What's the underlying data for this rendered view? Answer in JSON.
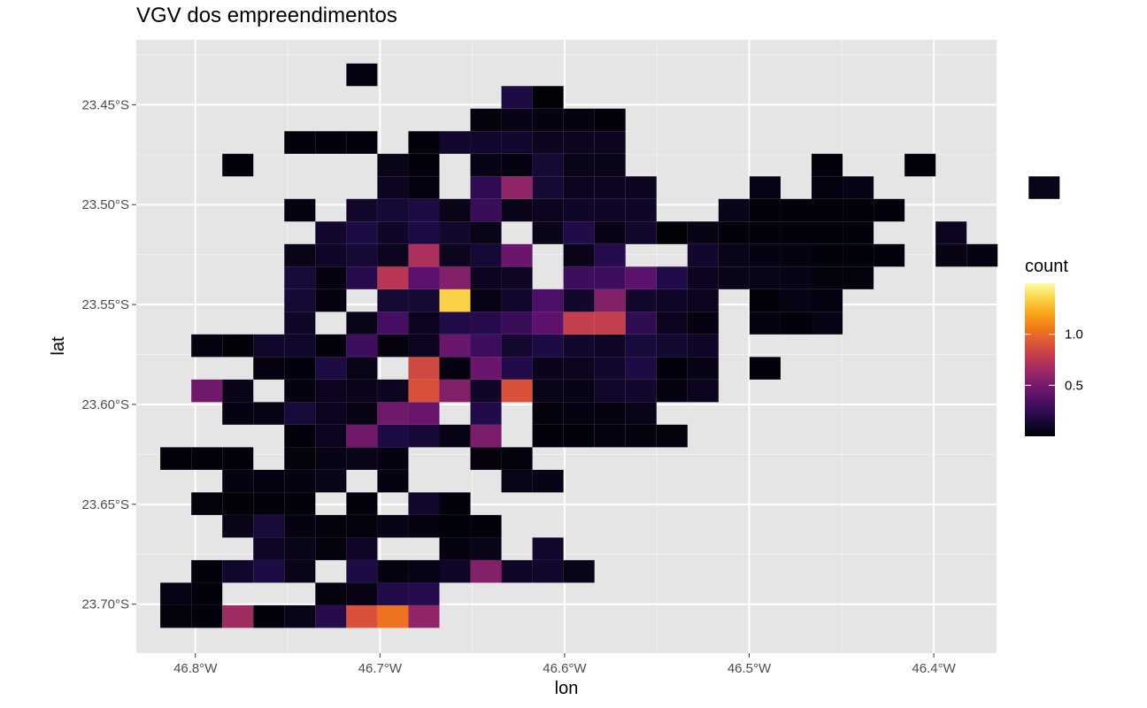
{
  "title": "VGV dos empreendimentos",
  "colors": {
    "panel_background": "#e5e5e5",
    "grid_line": "#ffffff",
    "palette": "inferno"
  },
  "chart_data": {
    "type": "heatmap",
    "title": "VGV dos empreendimentos",
    "xlabel": "lon",
    "ylabel": "lat",
    "x_ticks": [
      {
        "value": -46.8,
        "label": "46.8°W"
      },
      {
        "value": -46.7,
        "label": "46.7°W"
      },
      {
        "value": -46.6,
        "label": "46.6°W"
      },
      {
        "value": -46.5,
        "label": "46.5°W"
      },
      {
        "value": -46.4,
        "label": "46.4°W"
      }
    ],
    "y_ticks": [
      {
        "value": -23.45,
        "label": "23.45°S"
      },
      {
        "value": -23.5,
        "label": "23.50°S"
      },
      {
        "value": -23.55,
        "label": "23.55°S"
      },
      {
        "value": -23.6,
        "label": "23.60°S"
      },
      {
        "value": -23.65,
        "label": "23.65°S"
      },
      {
        "value": -23.7,
        "label": "23.70°S"
      }
    ],
    "xlim": [
      -46.832,
      -46.366
    ],
    "ylim": [
      -23.7245,
      -23.4175
    ],
    "grid": true,
    "legend": {
      "title": "count",
      "placement": "right",
      "range": [
        0.0,
        1.5
      ],
      "ticks": [
        {
          "value": 0.5,
          "label": "0.5"
        },
        {
          "value": 1.0,
          "label": "1.0"
        }
      ]
    },
    "bin_width": {
      "lon": 0.0168,
      "lat": 0.0113
    },
    "origin": {
      "lon": -46.8106,
      "lat": -23.7062
    },
    "cells": [
      [
        0,
        0,
        0.03
      ],
      [
        1,
        0,
        0.02
      ],
      [
        2,
        0,
        0.65
      ],
      [
        3,
        0,
        0.02
      ],
      [
        4,
        0,
        0.06
      ],
      [
        5,
        0,
        0.22
      ],
      [
        6,
        0,
        0.9
      ],
      [
        7,
        0,
        1.03
      ],
      [
        8,
        0,
        0.6
      ],
      [
        0,
        1,
        0.05
      ],
      [
        1,
        1,
        0.02
      ],
      [
        5,
        1,
        0.03
      ],
      [
        6,
        1,
        0.05
      ],
      [
        7,
        1,
        0.2
      ],
      [
        8,
        1,
        0.22
      ],
      [
        1,
        2,
        0.02
      ],
      [
        2,
        2,
        0.11
      ],
      [
        3,
        2,
        0.18
      ],
      [
        4,
        2,
        0.06
      ],
      [
        6,
        2,
        0.18
      ],
      [
        7,
        2,
        0.04
      ],
      [
        8,
        2,
        0.05
      ],
      [
        9,
        2,
        0.1
      ],
      [
        10,
        2,
        0.55
      ],
      [
        11,
        2,
        0.1
      ],
      [
        12,
        2,
        0.12
      ],
      [
        13,
        2,
        0.06
      ],
      [
        3,
        3,
        0.1
      ],
      [
        4,
        3,
        0.06
      ],
      [
        5,
        3,
        0.03
      ],
      [
        6,
        3,
        0.1
      ],
      [
        9,
        3,
        0.04
      ],
      [
        10,
        3,
        0.06
      ],
      [
        12,
        3,
        0.12
      ],
      [
        2,
        4,
        0.06
      ],
      [
        3,
        4,
        0.16
      ],
      [
        4,
        4,
        0.04
      ],
      [
        5,
        4,
        0.03
      ],
      [
        6,
        4,
        0.03
      ],
      [
        7,
        4,
        0.05
      ],
      [
        8,
        4,
        0.04
      ],
      [
        9,
        4,
        0.02
      ],
      [
        10,
        4,
        0.02
      ],
      [
        1,
        5,
        0.03
      ],
      [
        2,
        5,
        0.01
      ],
      [
        3,
        5,
        0.02
      ],
      [
        4,
        5,
        0.02
      ],
      [
        6,
        5,
        0.02
      ],
      [
        8,
        5,
        0.12
      ],
      [
        9,
        5,
        0.02
      ],
      [
        2,
        6,
        0.04
      ],
      [
        3,
        6,
        0.04
      ],
      [
        4,
        6,
        0.04
      ],
      [
        5,
        6,
        0.06
      ],
      [
        7,
        6,
        0.04
      ],
      [
        11,
        6,
        0.06
      ],
      [
        12,
        6,
        0.05
      ],
      [
        0,
        7,
        0.02
      ],
      [
        1,
        7,
        0.02
      ],
      [
        2,
        7,
        0.02
      ],
      [
        4,
        7,
        0.03
      ],
      [
        5,
        7,
        0.05
      ],
      [
        6,
        7,
        0.06
      ],
      [
        7,
        7,
        0.04
      ],
      [
        10,
        7,
        0.03
      ],
      [
        11,
        7,
        0.03
      ],
      [
        4,
        8,
        0.02
      ],
      [
        5,
        8,
        0.08
      ],
      [
        6,
        8,
        0.48
      ],
      [
        7,
        8,
        0.18
      ],
      [
        8,
        8,
        0.15
      ],
      [
        9,
        8,
        0.05
      ],
      [
        10,
        8,
        0.52
      ],
      [
        12,
        8,
        0.02
      ],
      [
        13,
        8,
        0.02
      ],
      [
        14,
        8,
        0.04
      ],
      [
        15,
        8,
        0.03
      ],
      [
        16,
        8,
        0.03
      ],
      [
        2,
        9,
        0.04
      ],
      [
        3,
        9,
        0.05
      ],
      [
        4,
        9,
        0.16
      ],
      [
        5,
        9,
        0.08
      ],
      [
        6,
        9,
        0.05
      ],
      [
        7,
        9,
        0.48
      ],
      [
        8,
        9,
        0.45
      ],
      [
        10,
        9,
        0.2
      ],
      [
        12,
        9,
        0.03
      ],
      [
        13,
        9,
        0.04
      ],
      [
        14,
        9,
        0.04
      ],
      [
        15,
        9,
        0.06
      ],
      [
        1,
        10,
        0.48
      ],
      [
        2,
        10,
        0.06
      ],
      [
        4,
        10,
        0.04
      ],
      [
        5,
        10,
        0.08
      ],
      [
        6,
        10,
        0.07
      ],
      [
        7,
        10,
        0.08
      ],
      [
        8,
        10,
        0.9
      ],
      [
        9,
        10,
        0.55
      ],
      [
        10,
        10,
        0.1
      ],
      [
        11,
        10,
        0.9
      ],
      [
        12,
        10,
        0.06
      ],
      [
        13,
        10,
        0.05
      ],
      [
        14,
        10,
        0.11
      ],
      [
        15,
        10,
        0.12
      ],
      [
        16,
        10,
        0.04
      ],
      [
        17,
        10,
        0.08
      ],
      [
        3,
        11,
        0.04
      ],
      [
        4,
        11,
        0.02
      ],
      [
        5,
        11,
        0.18
      ],
      [
        6,
        11,
        0.06
      ],
      [
        8,
        11,
        0.86
      ],
      [
        9,
        11,
        0.04
      ],
      [
        10,
        11,
        0.45
      ],
      [
        11,
        11,
        0.2
      ],
      [
        12,
        11,
        0.07
      ],
      [
        13,
        11,
        0.08
      ],
      [
        14,
        11,
        0.12
      ],
      [
        15,
        11,
        0.18
      ],
      [
        16,
        11,
        0.02
      ],
      [
        17,
        11,
        0.05
      ],
      [
        19,
        11,
        0.02
      ],
      [
        1,
        12,
        0.04
      ],
      [
        2,
        12,
        0.01
      ],
      [
        3,
        12,
        0.11
      ],
      [
        4,
        12,
        0.11
      ],
      [
        5,
        12,
        0.02
      ],
      [
        6,
        12,
        0.3
      ],
      [
        7,
        12,
        0.03
      ],
      [
        8,
        12,
        0.08
      ],
      [
        9,
        12,
        0.45
      ],
      [
        10,
        12,
        0.3
      ],
      [
        11,
        12,
        0.13
      ],
      [
        12,
        12,
        0.18
      ],
      [
        13,
        12,
        0.12
      ],
      [
        14,
        12,
        0.1
      ],
      [
        15,
        12,
        0.16
      ],
      [
        16,
        12,
        0.13
      ],
      [
        17,
        12,
        0.1
      ],
      [
        4,
        13,
        0.1
      ],
      [
        6,
        13,
        0.06
      ],
      [
        7,
        13,
        0.32
      ],
      [
        8,
        13,
        0.08
      ],
      [
        9,
        13,
        0.2
      ],
      [
        10,
        13,
        0.22
      ],
      [
        11,
        13,
        0.28
      ],
      [
        12,
        13,
        0.4
      ],
      [
        13,
        13,
        0.8
      ],
      [
        14,
        13,
        0.8
      ],
      [
        15,
        13,
        0.25
      ],
      [
        16,
        13,
        0.08
      ],
      [
        17,
        13,
        0.04
      ],
      [
        19,
        13,
        0.04
      ],
      [
        20,
        13,
        0.02
      ],
      [
        21,
        13,
        0.05
      ],
      [
        4,
        14,
        0.14
      ],
      [
        5,
        14,
        0.04
      ],
      [
        7,
        14,
        0.14
      ],
      [
        8,
        14,
        0.14
      ],
      [
        9,
        14,
        1.35
      ],
      [
        10,
        14,
        0.05
      ],
      [
        11,
        14,
        0.12
      ],
      [
        12,
        14,
        0.35
      ],
      [
        13,
        14,
        0.12
      ],
      [
        14,
        14,
        0.55
      ],
      [
        15,
        14,
        0.12
      ],
      [
        16,
        14,
        0.1
      ],
      [
        17,
        14,
        0.08
      ],
      [
        19,
        14,
        0.02
      ],
      [
        20,
        14,
        0.05
      ],
      [
        21,
        14,
        0.04
      ],
      [
        4,
        15,
        0.16
      ],
      [
        5,
        15,
        0.04
      ],
      [
        6,
        15,
        0.22
      ],
      [
        7,
        15,
        0.75
      ],
      [
        8,
        15,
        0.4
      ],
      [
        9,
        15,
        0.55
      ],
      [
        10,
        15,
        0.08
      ],
      [
        11,
        15,
        0.09
      ],
      [
        13,
        15,
        0.3
      ],
      [
        14,
        15,
        0.3
      ],
      [
        15,
        15,
        0.4
      ],
      [
        16,
        15,
        0.2
      ],
      [
        17,
        15,
        0.08
      ],
      [
        18,
        15,
        0.06
      ],
      [
        19,
        15,
        0.06
      ],
      [
        20,
        15,
        0.05
      ],
      [
        21,
        15,
        0.03
      ],
      [
        22,
        15,
        0.03
      ],
      [
        4,
        16,
        0.06
      ],
      [
        5,
        16,
        0.1
      ],
      [
        6,
        16,
        0.14
      ],
      [
        7,
        16,
        0.08
      ],
      [
        8,
        16,
        0.7
      ],
      [
        9,
        16,
        0.08
      ],
      [
        10,
        16,
        0.14
      ],
      [
        11,
        16,
        0.45
      ],
      [
        13,
        16,
        0.06
      ],
      [
        14,
        16,
        0.22
      ],
      [
        17,
        16,
        0.12
      ],
      [
        18,
        16,
        0.06
      ],
      [
        19,
        16,
        0.04
      ],
      [
        20,
        16,
        0.04
      ],
      [
        21,
        16,
        0.02
      ],
      [
        22,
        16,
        0.02
      ],
      [
        23,
        16,
        0.02
      ],
      [
        25,
        16,
        0.05
      ],
      [
        26,
        16,
        0.04
      ],
      [
        5,
        17,
        0.12
      ],
      [
        6,
        17,
        0.18
      ],
      [
        7,
        17,
        0.1
      ],
      [
        8,
        17,
        0.18
      ],
      [
        9,
        17,
        0.12
      ],
      [
        10,
        17,
        0.06
      ],
      [
        12,
        17,
        0.06
      ],
      [
        13,
        17,
        0.2
      ],
      [
        14,
        17,
        0.05
      ],
      [
        15,
        17,
        0.12
      ],
      [
        16,
        17,
        0.01
      ],
      [
        17,
        17,
        0.05
      ],
      [
        18,
        17,
        0.02
      ],
      [
        19,
        17,
        0.02
      ],
      [
        20,
        17,
        0.02
      ],
      [
        21,
        17,
        0.02
      ],
      [
        22,
        17,
        0.02
      ],
      [
        25,
        17,
        0.08
      ],
      [
        4,
        18,
        0.04
      ],
      [
        6,
        18,
        0.12
      ],
      [
        7,
        18,
        0.14
      ],
      [
        8,
        18,
        0.18
      ],
      [
        9,
        18,
        0.06
      ],
      [
        10,
        18,
        0.28
      ],
      [
        11,
        18,
        0.06
      ],
      [
        12,
        18,
        0.08
      ],
      [
        13,
        18,
        0.1
      ],
      [
        14,
        18,
        0.1
      ],
      [
        15,
        18,
        0.1
      ],
      [
        18,
        18,
        0.06
      ],
      [
        19,
        18,
        0.02
      ],
      [
        20,
        18,
        0.02
      ],
      [
        21,
        18,
        0.02
      ],
      [
        22,
        18,
        0.02
      ],
      [
        23,
        18,
        0.02
      ],
      [
        7,
        19,
        0.08
      ],
      [
        8,
        19,
        0.04
      ],
      [
        10,
        19,
        0.25
      ],
      [
        11,
        19,
        0.6
      ],
      [
        12,
        19,
        0.14
      ],
      [
        13,
        19,
        0.08
      ],
      [
        14,
        19,
        0.08
      ],
      [
        15,
        19,
        0.08
      ],
      [
        19,
        19,
        0.05
      ],
      [
        21,
        19,
        0.04
      ],
      [
        22,
        19,
        0.05
      ],
      [
        28,
        19,
        0.06
      ],
      [
        2,
        20,
        0.02
      ],
      [
        7,
        20,
        0.06
      ],
      [
        8,
        20,
        0.02
      ],
      [
        10,
        20,
        0.05
      ],
      [
        11,
        20,
        0.04
      ],
      [
        12,
        20,
        0.14
      ],
      [
        13,
        20,
        0.06
      ],
      [
        14,
        20,
        0.06
      ],
      [
        21,
        20,
        0.02
      ],
      [
        24,
        20,
        0.02
      ],
      [
        4,
        21,
        0.02
      ],
      [
        5,
        21,
        0.02
      ],
      [
        6,
        21,
        0.02
      ],
      [
        8,
        21,
        0.02
      ],
      [
        9,
        21,
        0.12
      ],
      [
        10,
        21,
        0.12
      ],
      [
        11,
        21,
        0.12
      ],
      [
        12,
        21,
        0.08
      ],
      [
        13,
        21,
        0.08
      ],
      [
        14,
        21,
        0.08
      ],
      [
        10,
        22,
        0.03
      ],
      [
        11,
        22,
        0.05
      ],
      [
        12,
        22,
        0.04
      ],
      [
        13,
        22,
        0.04
      ],
      [
        14,
        22,
        0.02
      ],
      [
        11,
        23,
        0.18
      ],
      [
        12,
        23,
        0.01
      ],
      [
        6,
        24,
        0.04
      ]
    ]
  }
}
